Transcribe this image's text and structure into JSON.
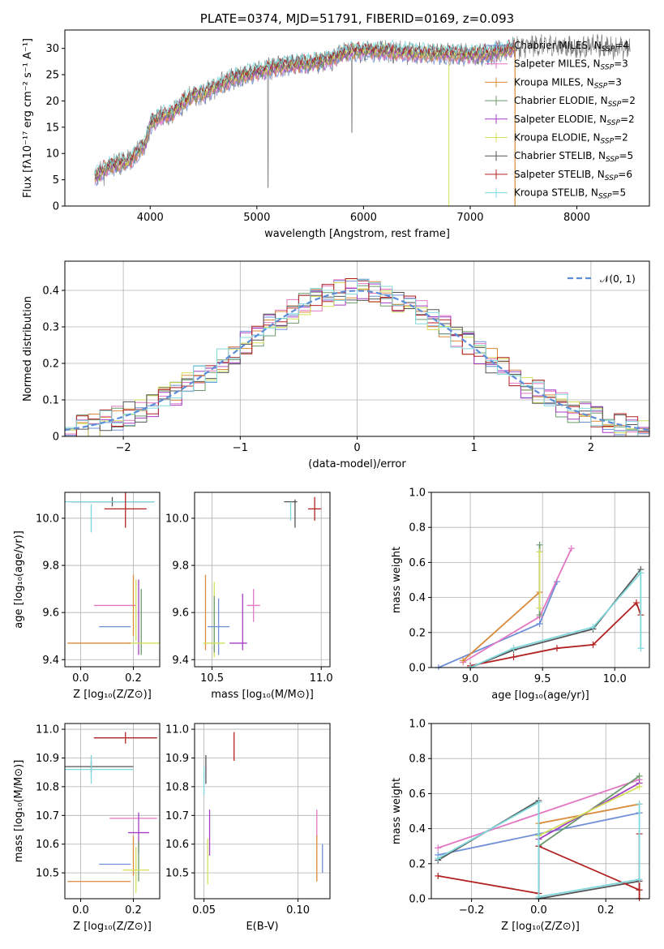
{
  "chart_data": [
    {
      "id": "spectrum",
      "type": "line",
      "title": "PLATE=0374, MJD=51791, FIBERID=0169, z=0.093",
      "xlabel": "wavelength [Angstrom, rest frame]",
      "ylabel": "Flux [fλ10⁻¹⁷ erg cm⁻² s⁻¹ A⁻¹]",
      "xlim": [
        3200,
        8680
      ],
      "ylim": [
        0,
        33.5
      ],
      "xticks": [
        4000,
        5000,
        6000,
        7000,
        8000
      ],
      "yticks": [
        0,
        5,
        10,
        15,
        20,
        25,
        30
      ],
      "grid": false,
      "legend_position": "top-right",
      "data_range": [
        3480,
        8500
      ],
      "envelope": {
        "wavelength": [
          3480,
          3600,
          3700,
          3800,
          3900,
          3960,
          4000,
          4100,
          4200,
          4300,
          4400,
          4500,
          4600,
          4700,
          4800,
          4900,
          5000,
          5100,
          5200,
          5300,
          5400,
          5500,
          5600,
          5700,
          5800,
          5900,
          6000,
          6200,
          6400,
          6600,
          6800,
          7000,
          7200,
          7400,
          7600,
          7800,
          8000,
          8200,
          8400,
          8500
        ],
        "flux": [
          5.5,
          7.5,
          8.0,
          8.5,
          10.5,
          12.0,
          15.5,
          17.0,
          17.5,
          19.5,
          21.0,
          21.5,
          22.5,
          23.5,
          24.5,
          25.0,
          25.5,
          26.0,
          26.5,
          26.8,
          27.0,
          27.2,
          27.5,
          28.0,
          29.0,
          29.5,
          29.5,
          29.5,
          29.2,
          29.0,
          29.0,
          28.8,
          29.0,
          30.0,
          30.5,
          30.5,
          30.0,
          30.5,
          30.0,
          30.0
        ]
      },
      "series": [
        {
          "name": "Chabrier MILES, N<sub>SSP</sub>=4",
          "color": "#6f8fd6"
        },
        {
          "name": "Salpeter MILES, N<sub>SSP</sub>=3",
          "color": "#e377c2"
        },
        {
          "name": "Kroupa MILES, N<sub>SSP</sub>=3",
          "color": "#d98a3a"
        },
        {
          "name": "Chabrier ELODIE, N<sub>SSP</sub>=2",
          "color": "#6b9a6b"
        },
        {
          "name": "Salpeter ELODIE, N<sub>SSP</sub>=2",
          "color": "#a43fc4"
        },
        {
          "name": "Kroupa ELODIE, N<sub>SSP</sub>=2",
          "color": "#d4e05a"
        },
        {
          "name": "Chabrier STELIB, N<sub>SSP</sub>=5",
          "color": "#555555"
        },
        {
          "name": "Salpeter STELIB, N<sub>SSP</sub>=6",
          "color": "#b22222"
        },
        {
          "name": "Kroupa STELIB, N<sub>SSP</sub>=5",
          "color": "#80d8dc"
        }
      ],
      "observed_color": "#808080"
    },
    {
      "id": "residuals",
      "type": "step",
      "xlabel": "(data-model)/error",
      "ylabel": "Normed distribution",
      "xlim": [
        -2.5,
        2.5
      ],
      "ylim": [
        0,
        0.48
      ],
      "xticks": [
        -2,
        -1,
        0,
        1,
        2
      ],
      "xtick_labels": [
        "−2",
        "−1",
        "0",
        "1",
        "2"
      ],
      "yticks": [
        0.0,
        0.1,
        0.2,
        0.3,
        0.4
      ],
      "grid": true,
      "legend_position": "top-right",
      "reference_label": "𝒩(0, 1)",
      "reference_color": "#5b8dd9",
      "bin_width": 0.1
    },
    {
      "id": "age-vs-Z",
      "type": "scatter",
      "xlabel": "Z [log₁₀(Z/Z⊙)]",
      "ylabel": "age  [log₁₀(age/yr)]",
      "xlim": [
        -0.06,
        0.3
      ],
      "ylim": [
        9.37,
        10.11
      ],
      "xticks": [
        0.0,
        0.2
      ],
      "xtick_labels": [
        "0.0",
        "0.2"
      ],
      "yticks": [
        9.4,
        9.6,
        9.8,
        10.0
      ],
      "ytick_labels": [
        "9.4",
        "9.6",
        "9.8",
        "10.0"
      ],
      "grid": true,
      "points": [
        {
          "x": 0.12,
          "y": 10.07,
          "xerr": 0.16,
          "yerr": 0.02,
          "color": "#555555"
        },
        {
          "x": 0.04,
          "y": 10.0,
          "xerr": 0.0,
          "yerr": 0.06,
          "color": "#80d8dc"
        },
        {
          "x": 0.11,
          "y": 10.07,
          "xerr": 0.17,
          "yerr": 0.0,
          "color": "#80d8dc"
        },
        {
          "x": 0.17,
          "y": 10.04,
          "xerr": 0.08,
          "yerr": 0.08,
          "color": "#b22222"
        },
        {
          "x": 0.13,
          "y": 9.63,
          "xerr": 0.08,
          "yerr": 0.0,
          "color": "#e377c2"
        },
        {
          "x": 0.2,
          "y": 9.63,
          "xerr": 0.0,
          "yerr": 0.13,
          "color": "#d98a3a"
        },
        {
          "x": 0.21,
          "y": 9.61,
          "xerr": 0.0,
          "yerr": 0.13,
          "color": "#d4e05a"
        },
        {
          "x": 0.22,
          "y": 9.58,
          "xerr": 0.0,
          "yerr": 0.16,
          "color": "#a43fc4"
        },
        {
          "x": 0.23,
          "y": 9.56,
          "xerr": 0.0,
          "yerr": 0.14,
          "color": "#6b9a6b"
        },
        {
          "x": 0.13,
          "y": 9.54,
          "xerr": 0.06,
          "yerr": 0.0,
          "color": "#6f8fd6"
        },
        {
          "x": 0.24,
          "y": 9.47,
          "xerr": 0.06,
          "yerr": 0.0,
          "color": "#d4e05a"
        },
        {
          "x": 0.07,
          "y": 9.47,
          "xerr": 0.12,
          "yerr": 0.0,
          "color": "#d98a3a"
        }
      ]
    },
    {
      "id": "age-vs-mass",
      "type": "scatter",
      "xlabel": "mass [log₁₀(M/M⊙)]",
      "xlim": [
        10.42,
        11.04
      ],
      "ylim": [
        9.37,
        10.11
      ],
      "xticks": [
        10.5,
        11.0
      ],
      "xtick_labels": [
        "10.5",
        "11.0"
      ],
      "yticks": [
        9.4,
        9.6,
        9.8,
        10.0
      ],
      "ytick_labels": [
        "9.4",
        "9.6",
        "9.8",
        "10.0"
      ],
      "grid": true,
      "points": [
        {
          "x": 10.86,
          "y": 10.07,
          "xerr": 0.03,
          "yerr": 0.0,
          "color": "#555555"
        },
        {
          "x": 10.86,
          "y": 10.03,
          "xerr": 0.0,
          "yerr": 0.04,
          "color": "#80d8dc"
        },
        {
          "x": 10.88,
          "y": 10.02,
          "xerr": 0.0,
          "yerr": 0.06,
          "color": "#555555"
        },
        {
          "x": 10.97,
          "y": 10.04,
          "xerr": 0.03,
          "yerr": 0.05,
          "color": "#b22222"
        },
        {
          "x": 10.69,
          "y": 9.63,
          "xerr": 0.03,
          "yerr": 0.07,
          "color": "#e377c2"
        },
        {
          "x": 10.47,
          "y": 9.6,
          "xerr": 0.0,
          "yerr": 0.16,
          "color": "#d98a3a"
        },
        {
          "x": 10.51,
          "y": 9.57,
          "xerr": 0.0,
          "yerr": 0.16,
          "color": "#d4e05a"
        },
        {
          "x": 10.64,
          "y": 9.56,
          "xerr": 0.0,
          "yerr": 0.12,
          "color": "#a43fc4"
        },
        {
          "x": 10.51,
          "y": 9.55,
          "xerr": 0.0,
          "yerr": 0.12,
          "color": "#6b9a6b"
        },
        {
          "x": 10.53,
          "y": 9.54,
          "xerr": 0.05,
          "yerr": 0.12,
          "color": "#6f8fd6"
        },
        {
          "x": 10.51,
          "y": 9.47,
          "xerr": 0.05,
          "yerr": 0.0,
          "color": "#d4e05a"
        },
        {
          "x": 10.62,
          "y": 9.47,
          "xerr": 0.04,
          "yerr": 0.0,
          "color": "#a43fc4"
        }
      ]
    },
    {
      "id": "massweight-vs-age",
      "type": "line",
      "xlabel": "age  [log₁₀(age/yr)]",
      "ylabel": "mass weight",
      "xlim": [
        8.73,
        10.24
      ],
      "ylim": [
        0.0,
        1.0
      ],
      "xticks": [
        9.0,
        9.5,
        10.0
      ],
      "xtick_labels": [
        "9.0",
        "9.5",
        "10.0"
      ],
      "yticks": [
        0.0,
        0.2,
        0.4,
        0.6,
        0.8,
        1.0
      ],
      "ytick_labels": [
        "0.0",
        "0.2",
        "0.4",
        "0.6",
        "0.8",
        "1.0"
      ],
      "grid": true,
      "series": [
        {
          "color": "#6f8fd6",
          "x": [
            8.78,
            9.48,
            9.6
          ],
          "y": [
            0.0,
            0.25,
            0.49
          ]
        },
        {
          "color": "#e377c2",
          "x": [
            8.95,
            9.48,
            9.7
          ],
          "y": [
            0.03,
            0.29,
            0.68
          ]
        },
        {
          "color": "#d98a3a",
          "x": [
            8.95,
            9.48
          ],
          "y": [
            0.04,
            0.43
          ]
        },
        {
          "color": "#6b9a6b",
          "x": [
            9.48,
            9.48
          ],
          "y": [
            0.3,
            0.7
          ]
        },
        {
          "color": "#a43fc4",
          "x": [
            9.48,
            9.48
          ],
          "y": [
            0.34,
            0.66
          ]
        },
        {
          "color": "#d4e05a",
          "x": [
            9.48,
            9.48
          ],
          "y": [
            0.34,
            0.66
          ]
        },
        {
          "color": "#555555",
          "x": [
            9.0,
            9.3,
            9.85,
            10.18
          ],
          "y": [
            0.0,
            0.1,
            0.22,
            0.56
          ]
        },
        {
          "color": "#b22222",
          "x": [
            9.0,
            9.3,
            9.6,
            9.85,
            10.15,
            10.18
          ],
          "y": [
            0.01,
            0.06,
            0.11,
            0.13,
            0.37,
            0.3
          ]
        },
        {
          "color": "#80d8dc",
          "x": [
            9.0,
            9.3,
            9.85,
            10.18,
            10.18
          ],
          "y": [
            0.0,
            0.11,
            0.23,
            0.54,
            0.11
          ]
        }
      ]
    },
    {
      "id": "mass-vs-Z",
      "type": "scatter",
      "xlabel": "Z [log₁₀(Z/Z⊙)]",
      "ylabel": "mass [log₁₀(M/M⊙)]",
      "xlim": [
        -0.06,
        0.3
      ],
      "ylim": [
        10.41,
        11.02
      ],
      "xticks": [
        0.0,
        0.2
      ],
      "xtick_labels": [
        "0.0",
        "0.2"
      ],
      "yticks": [
        10.5,
        10.6,
        10.7,
        10.8,
        10.9,
        11.0
      ],
      "ytick_labels": [
        "10.5",
        "10.6",
        "10.7",
        "10.8",
        "10.9",
        "11.0"
      ],
      "grid": true,
      "points": [
        {
          "x": 0.17,
          "y": 10.97,
          "xerr": 0.12,
          "yerr": 0.02,
          "color": "#b22222"
        },
        {
          "x": 0.04,
          "y": 10.87,
          "xerr": 0.16,
          "yerr": 0.02,
          "color": "#555555"
        },
        {
          "x": 0.04,
          "y": 10.86,
          "xerr": 0.16,
          "yerr": 0.05,
          "color": "#80d8dc"
        },
        {
          "x": 0.2,
          "y": 10.69,
          "xerr": 0.09,
          "yerr": 0.0,
          "color": "#e377c2"
        },
        {
          "x": 0.22,
          "y": 10.64,
          "xerr": 0.04,
          "yerr": 0.07,
          "color": "#a43fc4"
        },
        {
          "x": 0.2,
          "y": 10.56,
          "xerr": 0.0,
          "yerr": 0.07,
          "color": "#d98a3a"
        },
        {
          "x": 0.22,
          "y": 10.54,
          "xerr": 0.0,
          "yerr": 0.07,
          "color": "#6b9a6b"
        },
        {
          "x": 0.13,
          "y": 10.53,
          "xerr": 0.06,
          "yerr": 0.0,
          "color": "#6f8fd6"
        },
        {
          "x": 0.21,
          "y": 10.51,
          "xerr": 0.05,
          "yerr": 0.08,
          "color": "#d4e05a"
        },
        {
          "x": 0.07,
          "y": 10.47,
          "xerr": 0.12,
          "yerr": 0.0,
          "color": "#d98a3a"
        }
      ]
    },
    {
      "id": "mass-vs-ebv",
      "type": "scatter",
      "xlabel": "E(B-V)",
      "xlim": [
        0.045,
        0.117
      ],
      "ylim": [
        10.41,
        11.02
      ],
      "xticks": [
        0.05,
        0.1
      ],
      "xtick_labels": [
        "0.05",
        "0.10"
      ],
      "yticks": [
        10.5,
        10.6,
        10.7,
        10.8,
        10.9,
        11.0
      ],
      "ytick_labels": [
        "10.5",
        "10.6",
        "10.7",
        "10.8",
        "10.9",
        "11.0"
      ],
      "grid": true,
      "points": [
        {
          "x": 0.066,
          "y": 10.94,
          "xerr": 0.0,
          "yerr": 0.05,
          "color": "#b22222"
        },
        {
          "x": 0.051,
          "y": 10.86,
          "xerr": 0.0,
          "yerr": 0.05,
          "color": "#555555"
        },
        {
          "x": 0.05,
          "y": 10.82,
          "xerr": 0.0,
          "yerr": 0.05,
          "color": "#80d8dc"
        },
        {
          "x": 0.053,
          "y": 10.64,
          "xerr": 0.0,
          "yerr": 0.08,
          "color": "#a43fc4"
        },
        {
          "x": 0.052,
          "y": 10.54,
          "xerr": 0.0,
          "yerr": 0.08,
          "color": "#d4e05a"
        },
        {
          "x": 0.11,
          "y": 10.67,
          "xerr": 0.0,
          "yerr": 0.05,
          "color": "#e377c2"
        },
        {
          "x": 0.11,
          "y": 10.55,
          "xerr": 0.0,
          "yerr": 0.08,
          "color": "#d98a3a"
        },
        {
          "x": 0.113,
          "y": 10.55,
          "xerr": 0.0,
          "yerr": 0.05,
          "color": "#6f8fd6"
        }
      ]
    },
    {
      "id": "massweight-vs-Z",
      "type": "line",
      "xlabel": "Z [log₁₀(Z/Z⊙)]",
      "ylabel": "mass weight",
      "xlim": [
        -0.32,
        0.33
      ],
      "ylim": [
        0.0,
        1.0
      ],
      "xticks": [
        -0.2,
        0.0,
        0.2
      ],
      "xtick_labels": [
        "−0.2",
        "0.0",
        "0.2"
      ],
      "yticks": [
        0.0,
        0.2,
        0.4,
        0.6,
        0.8,
        1.0
      ],
      "ytick_labels": [
        "0.0",
        "0.2",
        "0.4",
        "0.6",
        "0.8",
        "1.0"
      ],
      "grid": true,
      "series": [
        {
          "color": "#6f8fd6",
          "x": [
            -0.3,
            0.0,
            0.3
          ],
          "y": [
            0.25,
            0.37,
            0.49
          ]
        },
        {
          "color": "#e377c2",
          "x": [
            -0.3,
            0.3
          ],
          "y": [
            0.29,
            0.68
          ]
        },
        {
          "color": "#d98a3a",
          "x": [
            0.0,
            0.3
          ],
          "y": [
            0.43,
            0.54
          ]
        },
        {
          "color": "#6b9a6b",
          "x": [
            0.0,
            0.3
          ],
          "y": [
            0.3,
            0.7
          ]
        },
        {
          "color": "#a43fc4",
          "x": [
            0.0,
            0.3
          ],
          "y": [
            0.34,
            0.66
          ]
        },
        {
          "color": "#d4e05a",
          "x": [
            0.0,
            0.3
          ],
          "y": [
            0.36,
            0.64
          ]
        },
        {
          "color": "#555555",
          "x": [
            -0.3,
            0.0,
            0.0,
            0.3,
            0.3
          ],
          "y": [
            0.22,
            0.56,
            0.0,
            0.1,
            0.05
          ]
        },
        {
          "color": "#b22222",
          "x": [
            -0.3,
            0.0,
            0.0,
            0.3,
            0.3,
            0.3
          ],
          "y": [
            0.13,
            0.03,
            0.3,
            0.05,
            0.37,
            0.0
          ]
        },
        {
          "color": "#80d8dc",
          "x": [
            -0.3,
            0.0,
            0.0,
            0.3,
            0.3
          ],
          "y": [
            0.23,
            0.55,
            0.01,
            0.11,
            0.54
          ]
        }
      ]
    }
  ]
}
